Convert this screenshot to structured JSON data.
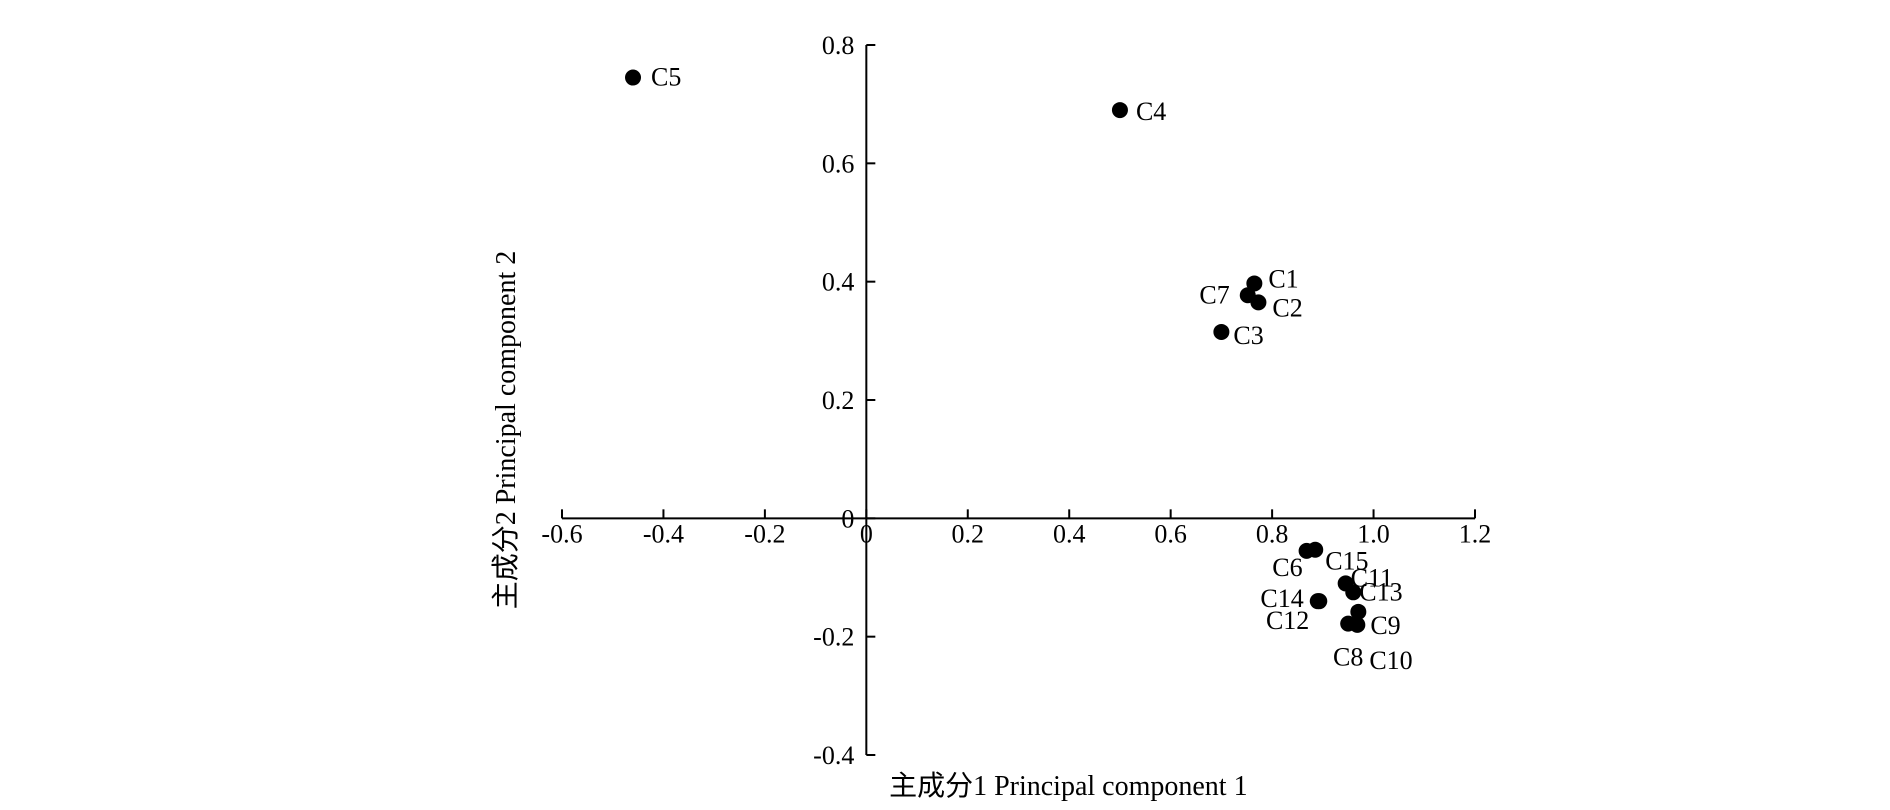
{
  "chart_data": {
    "type": "scatter",
    "title": "",
    "xlabel": "主成分1  Principal component 1",
    "ylabel": "主成分2  Principal component 2",
    "xlim": [
      -0.6,
      1.2
    ],
    "ylim": [
      -0.4,
      0.8
    ],
    "xticks": [
      -0.6,
      -0.4,
      -0.2,
      0,
      0.2,
      0.4,
      0.6,
      0.8,
      1.0,
      1.2
    ],
    "yticks": [
      -0.4,
      -0.2,
      0,
      0.2,
      0.4,
      0.6,
      0.8
    ],
    "xtick_labels": [
      "-0.6",
      "-0.4",
      "-0.2",
      "0",
      "0.2",
      "0.4",
      "0.6",
      "0.8",
      "1.0",
      "1.2"
    ],
    "ytick_labels": [
      "-0.4",
      "-0.2",
      "0",
      "0.2",
      "0.4",
      "0.6",
      "0.8"
    ],
    "grid": false,
    "legend": "none",
    "point_color": "#000000",
    "points": [
      {
        "label": "C1",
        "x": 0.765,
        "y": 0.397
      },
      {
        "label": "C2",
        "x": 0.773,
        "y": 0.365
      },
      {
        "label": "C3",
        "x": 0.7,
        "y": 0.315
      },
      {
        "label": "C4",
        "x": 0.5,
        "y": 0.69
      },
      {
        "label": "C5",
        "x": -0.46,
        "y": 0.745
      },
      {
        "label": "C6",
        "x": 0.868,
        "y": -0.055
      },
      {
        "label": "C7",
        "x": 0.752,
        "y": 0.377
      },
      {
        "label": "C8",
        "x": 0.95,
        "y": -0.178
      },
      {
        "label": "C9",
        "x": 0.97,
        "y": -0.158
      },
      {
        "label": "C10",
        "x": 0.968,
        "y": -0.18
      },
      {
        "label": "C11",
        "x": 0.945,
        "y": -0.11
      },
      {
        "label": "C12",
        "x": 0.893,
        "y": -0.14
      },
      {
        "label": "C13",
        "x": 0.96,
        "y": -0.125
      },
      {
        "label": "C14",
        "x": 0.89,
        "y": -0.14
      },
      {
        "label": "C15",
        "x": 0.885,
        "y": -0.053
      }
    ]
  }
}
